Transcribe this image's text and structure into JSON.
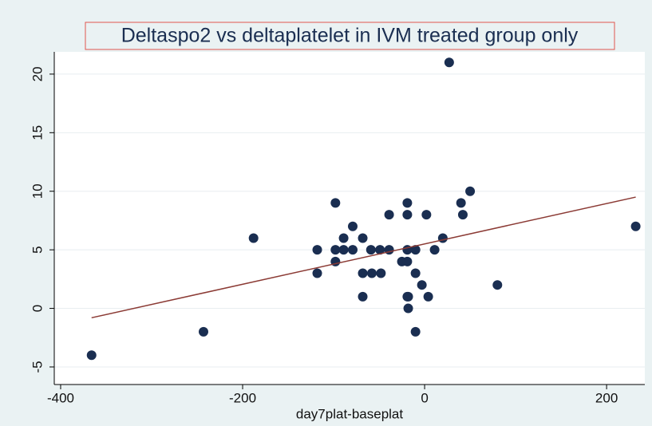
{
  "chart_data": {
    "type": "scatter",
    "title": "Deltaspo2 vs deltaplatelet in IVM treated group only",
    "x_label": "day7plat-baseplat",
    "x": [
      -366,
      -243,
      -188,
      -118,
      -118,
      -98,
      -98,
      -98,
      -89,
      -89,
      -79,
      -79,
      -68,
      -68,
      -68,
      -59,
      -58,
      -49,
      -48,
      -39,
      -39,
      -25,
      -19,
      -19,
      -19,
      -19,
      -19,
      -18,
      -18,
      -10,
      -10,
      -10,
      -3,
      2,
      4,
      11,
      20,
      27,
      40,
      42,
      50,
      80,
      232
    ],
    "y": [
      -4,
      -2,
      6,
      5,
      3,
      9,
      5,
      4,
      6,
      5,
      7,
      5,
      6,
      3,
      1,
      5,
      3,
      5,
      3,
      8,
      5,
      4,
      9,
      8,
      5,
      4,
      1,
      0,
      1,
      5,
      3,
      -2,
      2,
      8,
      1,
      5,
      6,
      21,
      9,
      8,
      10,
      2,
      7
    ],
    "color": "#1a2e51",
    "fit": {
      "x": [
        -366,
        232
      ],
      "y": [
        -0.8,
        9.5
      ],
      "color": "#8b3a34"
    },
    "xlim": [
      -407,
      242
    ],
    "ylim": [
      -6.5,
      21.9
    ],
    "xticks": [
      -400,
      -200,
      0,
      200
    ],
    "yticks": [
      -5,
      0,
      5,
      10,
      15,
      20
    ],
    "grid": true
  }
}
